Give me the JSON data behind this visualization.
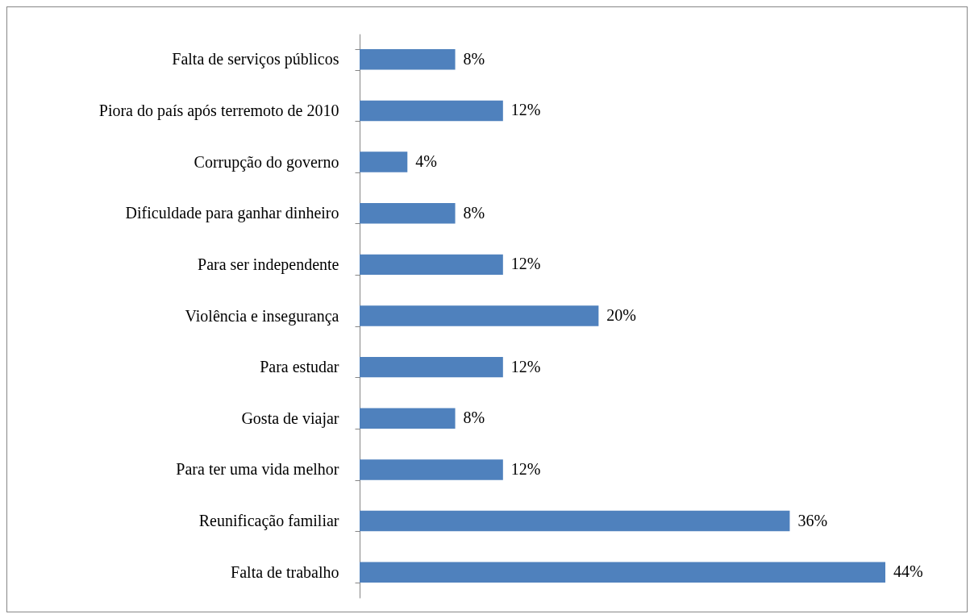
{
  "chart_data": {
    "type": "bar",
    "orientation": "horizontal",
    "categories": [
      "Falta de serviços públicos",
      "Piora do país após terremoto de 2010",
      "Corrupção do governo",
      "Dificuldade para ganhar dinheiro",
      "Para ser independente",
      "Violência e insegurança",
      "Para estudar ",
      "Gosta de viajar",
      "Para ter uma vida melhor",
      "Reunificação familiar",
      "Falta de trabalho"
    ],
    "values": [
      8,
      12,
      4,
      8,
      12,
      20,
      12,
      8,
      12,
      36,
      44
    ],
    "value_labels": [
      "8%",
      "12%",
      "4%",
      "8%",
      "12%",
      "20%",
      "12%",
      "8%",
      "12%",
      "36%",
      "44%"
    ],
    "color": "#4f81bd"
  }
}
